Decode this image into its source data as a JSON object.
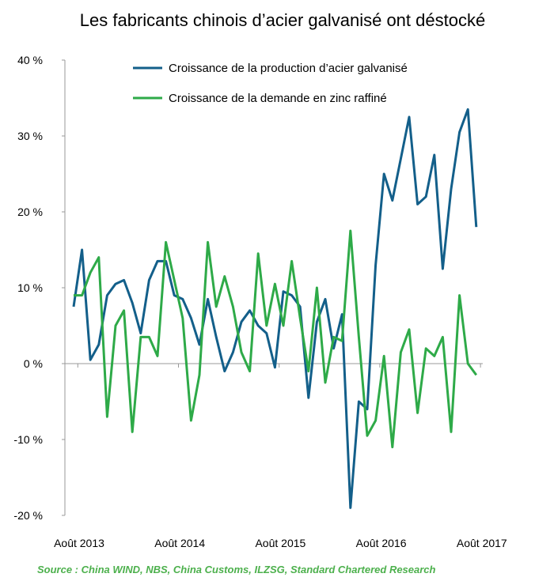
{
  "chart_data": {
    "type": "line",
    "title": "Les fabricants chinois d’acier galvanisé ont déstocké",
    "source": "Source :  China WIND,  NBS, China Customs, ILZSG, Standard Chartered Research",
    "x_tick_labels": [
      "Août 2013",
      "Août 2014",
      "Août 2015",
      "Août 2016",
      "Août 2017"
    ],
    "y_tick_labels": [
      "40 %",
      "30 %",
      "20 %",
      "10 %",
      "0 %",
      "-10 %",
      "-20 %"
    ],
    "ylim": [
      -20,
      40
    ],
    "unit": "%",
    "legend_position": "top",
    "grid": false,
    "series": [
      {
        "name": "Croissance de la production d’acier galvanisé",
        "color": "#135f8a",
        "values": [
          7.5,
          15,
          0.5,
          2.5,
          9,
          10.5,
          11,
          8,
          4,
          11,
          13.5,
          13.5,
          9,
          8.5,
          6,
          2.5,
          8.5,
          3.5,
          -1,
          1.5,
          5.5,
          7,
          5,
          4,
          -0.5,
          9.5,
          9,
          7.5,
          -4.5,
          5.5,
          8.5,
          2,
          6.5,
          -19,
          -5,
          -6,
          13,
          25,
          21.5,
          27,
          32.5,
          21,
          22,
          27.5,
          12.5,
          23,
          30.5,
          33.5,
          18
        ]
      },
      {
        "name": "Croissance de la demande en zinc raffiné",
        "color": "#2eaa48",
        "values": [
          9,
          9,
          12,
          14,
          -7,
          5,
          7,
          -9,
          3.5,
          3.5,
          1,
          16,
          11,
          6,
          -7.5,
          -1.5,
          16,
          7.5,
          11.5,
          7.5,
          1.5,
          -1,
          14.5,
          5,
          10.5,
          5,
          13.5,
          6,
          -1,
          10,
          -2.5,
          3.5,
          3,
          17.5,
          3.5,
          -9.5,
          -7.5,
          1,
          -11,
          1.5,
          4.5,
          -6.5,
          2,
          1,
          3.5,
          -9,
          9,
          0,
          -1.5
        ]
      }
    ]
  }
}
